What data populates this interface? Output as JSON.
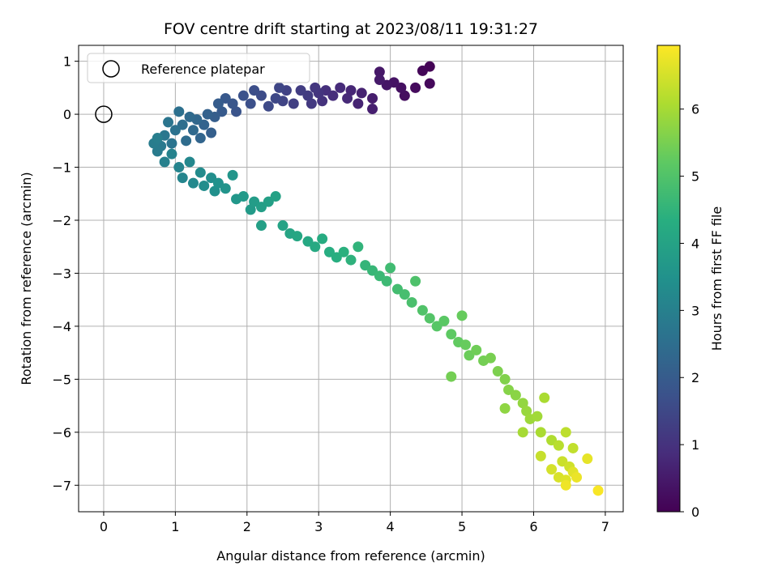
{
  "chart_data": {
    "type": "scatter",
    "title": "FOV centre drift starting at 2023/08/11 19:31:27",
    "xlabel": "Angular distance from reference (arcmin)",
    "ylabel": "Rotation from reference (arcmin)",
    "xlim": [
      -0.35,
      7.25
    ],
    "ylim": [
      -7.5,
      1.3
    ],
    "xticks": [
      0,
      1,
      2,
      3,
      4,
      5,
      6,
      7
    ],
    "xtick_labels": [
      "0",
      "1",
      "2",
      "3",
      "4",
      "5",
      "6",
      "7"
    ],
    "yticks": [
      1,
      0,
      -1,
      -2,
      -3,
      -4,
      -5,
      -6,
      -7
    ],
    "ytick_labels": [
      "1",
      "0",
      "−1",
      "−2",
      "−3",
      "−4",
      "−5",
      "−6",
      "−7"
    ],
    "grid": true,
    "colormap": "viridis",
    "colorbar": {
      "label": "Hours from first FF file",
      "range": [
        0,
        6.95
      ],
      "ticks": [
        0,
        1,
        2,
        3,
        4,
        5,
        6
      ],
      "tick_labels": [
        "0",
        "1",
        "2",
        "3",
        "4",
        "5",
        "6"
      ]
    },
    "legend": {
      "position": "top-left",
      "entries": [
        "Reference platepar"
      ]
    },
    "reference_point": {
      "x": 0,
      "y": 0
    },
    "points": [
      [
        4.55,
        0.9,
        0.05
      ],
      [
        4.45,
        0.82,
        0.1
      ],
      [
        4.55,
        0.58,
        0.15
      ],
      [
        4.35,
        0.5,
        0.2
      ],
      [
        4.2,
        0.35,
        0.25
      ],
      [
        4.15,
        0.5,
        0.3
      ],
      [
        4.05,
        0.6,
        0.35
      ],
      [
        3.95,
        0.55,
        0.4
      ],
      [
        3.85,
        0.8,
        0.45
      ],
      [
        3.85,
        0.65,
        0.5
      ],
      [
        3.75,
        0.3,
        0.55
      ],
      [
        3.75,
        0.1,
        0.6
      ],
      [
        3.6,
        0.4,
        0.65
      ],
      [
        3.55,
        0.2,
        0.7
      ],
      [
        3.45,
        0.45,
        0.75
      ],
      [
        3.4,
        0.3,
        0.8
      ],
      [
        3.3,
        0.5,
        0.85
      ],
      [
        3.2,
        0.35,
        0.9
      ],
      [
        3.1,
        0.45,
        0.95
      ],
      [
        3.05,
        0.25,
        1.0
      ],
      [
        3.0,
        0.4,
        1.05
      ],
      [
        2.95,
        0.5,
        1.1
      ],
      [
        2.9,
        0.2,
        1.15
      ],
      [
        2.85,
        0.35,
        1.2
      ],
      [
        2.75,
        0.45,
        1.25
      ],
      [
        2.65,
        0.2,
        1.3
      ],
      [
        2.55,
        0.45,
        1.35
      ],
      [
        2.5,
        0.25,
        1.4
      ],
      [
        2.45,
        0.5,
        1.45
      ],
      [
        2.4,
        0.3,
        1.5
      ],
      [
        2.3,
        0.15,
        1.55
      ],
      [
        2.2,
        0.35,
        1.6
      ],
      [
        2.1,
        0.45,
        1.65
      ],
      [
        2.05,
        0.2,
        1.7
      ],
      [
        1.95,
        0.35,
        1.75
      ],
      [
        1.85,
        0.05,
        1.8
      ],
      [
        1.8,
        0.2,
        1.85
      ],
      [
        1.7,
        0.3,
        1.9
      ],
      [
        1.65,
        0.05,
        1.95
      ],
      [
        1.6,
        0.2,
        2.0
      ],
      [
        1.55,
        -0.05,
        2.05
      ],
      [
        1.5,
        -0.35,
        2.1
      ],
      [
        1.45,
        0.0,
        2.15
      ],
      [
        1.4,
        -0.2,
        2.2
      ],
      [
        1.35,
        -0.45,
        2.25
      ],
      [
        1.3,
        -0.1,
        2.3
      ],
      [
        1.25,
        -0.3,
        2.35
      ],
      [
        1.2,
        -0.05,
        2.4
      ],
      [
        1.15,
        -0.5,
        2.45
      ],
      [
        1.1,
        -0.2,
        2.5
      ],
      [
        1.05,
        0.05,
        2.55
      ],
      [
        1.0,
        -0.3,
        2.6
      ],
      [
        0.95,
        -0.55,
        2.65
      ],
      [
        0.9,
        -0.15,
        2.7
      ],
      [
        0.85,
        -0.4,
        2.75
      ],
      [
        0.8,
        -0.6,
        2.8
      ],
      [
        0.75,
        -0.7,
        2.85
      ],
      [
        0.7,
        -0.55,
        2.9
      ],
      [
        0.75,
        -0.45,
        2.95
      ],
      [
        0.85,
        -0.9,
        3.0
      ],
      [
        0.95,
        -0.75,
        3.05
      ],
      [
        1.05,
        -1.0,
        3.1
      ],
      [
        1.1,
        -1.2,
        3.15
      ],
      [
        1.2,
        -0.9,
        3.2
      ],
      [
        1.25,
        -1.3,
        3.25
      ],
      [
        1.35,
        -1.1,
        3.3
      ],
      [
        1.4,
        -1.35,
        3.35
      ],
      [
        1.5,
        -1.2,
        3.4
      ],
      [
        1.55,
        -1.45,
        3.45
      ],
      [
        1.6,
        -1.3,
        3.5
      ],
      [
        1.7,
        -1.4,
        3.55
      ],
      [
        1.8,
        -1.15,
        3.6
      ],
      [
        1.85,
        -1.6,
        3.65
      ],
      [
        1.95,
        -1.55,
        3.7
      ],
      [
        2.05,
        -1.8,
        3.75
      ],
      [
        2.1,
        -1.65,
        3.8
      ],
      [
        2.2,
        -1.75,
        3.85
      ],
      [
        2.3,
        -1.65,
        3.9
      ],
      [
        2.4,
        -1.55,
        3.95
      ],
      [
        2.2,
        -2.1,
        3.9
      ],
      [
        2.5,
        -2.1,
        4.0
      ],
      [
        2.6,
        -2.25,
        4.05
      ],
      [
        2.7,
        -2.3,
        4.1
      ],
      [
        2.85,
        -2.4,
        4.15
      ],
      [
        2.95,
        -2.5,
        4.2
      ],
      [
        3.05,
        -2.35,
        4.25
      ],
      [
        3.15,
        -2.6,
        4.3
      ],
      [
        3.25,
        -2.7,
        4.35
      ],
      [
        3.35,
        -2.6,
        4.4
      ],
      [
        3.45,
        -2.75,
        4.45
      ],
      [
        3.55,
        -2.5,
        4.5
      ],
      [
        3.65,
        -2.85,
        4.55
      ],
      [
        3.75,
        -2.95,
        4.6
      ],
      [
        3.85,
        -3.05,
        4.65
      ],
      [
        3.95,
        -3.15,
        4.7
      ],
      [
        4.0,
        -2.9,
        4.75
      ],
      [
        4.1,
        -3.3,
        4.8
      ],
      [
        4.2,
        -3.4,
        4.85
      ],
      [
        4.3,
        -3.55,
        4.9
      ],
      [
        4.35,
        -3.15,
        4.95
      ],
      [
        4.45,
        -3.7,
        5.0
      ],
      [
        4.55,
        -3.85,
        5.05
      ],
      [
        4.65,
        -4.0,
        5.1
      ],
      [
        4.75,
        -3.9,
        5.15
      ],
      [
        4.85,
        -4.15,
        5.2
      ],
      [
        4.95,
        -4.3,
        5.25
      ],
      [
        5.05,
        -4.35,
        5.3
      ],
      [
        5.0,
        -3.8,
        5.3
      ],
      [
        5.1,
        -4.55,
        5.35
      ],
      [
        5.2,
        -4.45,
        5.4
      ],
      [
        5.3,
        -4.65,
        5.45
      ],
      [
        5.4,
        -4.6,
        5.5
      ],
      [
        4.85,
        -4.95,
        5.45
      ],
      [
        5.5,
        -4.85,
        5.55
      ],
      [
        5.6,
        -5.0,
        5.6
      ],
      [
        5.65,
        -5.2,
        5.65
      ],
      [
        5.75,
        -5.3,
        5.7
      ],
      [
        5.6,
        -5.55,
        5.75
      ],
      [
        5.85,
        -5.45,
        5.8
      ],
      [
        5.9,
        -5.6,
        5.85
      ],
      [
        5.95,
        -5.75,
        5.9
      ],
      [
        6.05,
        -5.7,
        5.95
      ],
      [
        5.85,
        -6.0,
        6.0
      ],
      [
        6.1,
        -6.0,
        6.05
      ],
      [
        6.15,
        -5.35,
        6.05
      ],
      [
        6.25,
        -6.15,
        6.1
      ],
      [
        6.35,
        -6.25,
        6.2
      ],
      [
        6.45,
        -6.0,
        6.25
      ],
      [
        6.55,
        -6.3,
        6.3
      ],
      [
        6.1,
        -6.45,
        6.35
      ],
      [
        6.4,
        -6.55,
        6.4
      ],
      [
        6.5,
        -6.65,
        6.45
      ],
      [
        6.25,
        -6.7,
        6.5
      ],
      [
        6.35,
        -6.85,
        6.55
      ],
      [
        6.45,
        -6.9,
        6.6
      ],
      [
        6.55,
        -6.75,
        6.65
      ],
      [
        6.75,
        -6.5,
        6.7
      ],
      [
        6.6,
        -6.85,
        6.75
      ],
      [
        6.45,
        -7.0,
        6.8
      ],
      [
        6.9,
        -7.1,
        6.9
      ]
    ]
  }
}
